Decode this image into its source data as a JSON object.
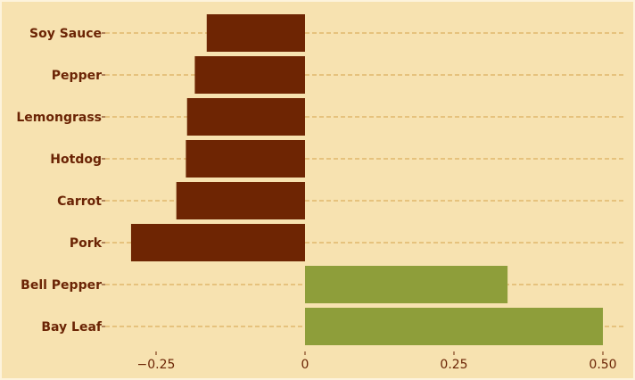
{
  "chart_data": {
    "type": "bar",
    "orientation": "horizontal",
    "categories": [
      "Soy Sauce",
      "Pepper",
      "Lemongrass",
      "Hotdog",
      "Carrot",
      "Pork",
      "Bell Pepper",
      "Bay Leaf"
    ],
    "values": [
      -0.165,
      -0.185,
      -0.198,
      -0.2,
      -0.216,
      -0.292,
      0.34,
      0.5
    ],
    "x_ticks": [
      -0.25,
      0,
      0.25,
      0.5
    ],
    "x_tick_labels": [
      "−0.25",
      "0",
      "0.25",
      "0.50"
    ],
    "xlim": [
      -0.33,
      0.54
    ],
    "title": "",
    "xlabel": "",
    "ylabel": "",
    "grid": "horizontal dashed",
    "colors": {
      "background": "#f7e2b0",
      "border": "#fdf3dc",
      "negative": "#6e2503",
      "positive": "#8e9e3a",
      "grid": "#d4a24a",
      "text": "#6b2405"
    }
  }
}
